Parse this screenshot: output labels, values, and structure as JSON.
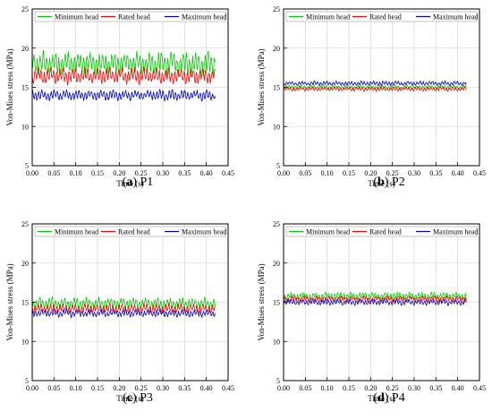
{
  "chart_data": [
    {
      "type": "line",
      "panel_letter": "a",
      "panel_name": "P1",
      "xlabel": "Time (s)",
      "ylabel": "Von-Mises stress (MPa)",
      "xlim": [
        0.0,
        0.45
      ],
      "ylim": [
        5,
        25
      ],
      "xticks": [
        "0.00",
        "0.05",
        "0.10",
        "0.15",
        "0.20",
        "0.25",
        "0.30",
        "0.35",
        "0.40",
        "0.45"
      ],
      "yticks": [
        "5",
        "10",
        "15",
        "20",
        "25"
      ],
      "grid": true,
      "legend": "top",
      "series": [
        {
          "name": "Minimum head",
          "color": "#00cc00",
          "x_start": 0.0,
          "x_end": 0.42,
          "mean": 18.0,
          "amplitude": 1.6
        },
        {
          "name": "Rated head",
          "color": "#ff0000",
          "x_start": 0.0,
          "x_end": 0.42,
          "mean": 16.5,
          "amplitude": 1.1
        },
        {
          "name": "Maximum head",
          "color": "#0000cc",
          "x_start": 0.0,
          "x_end": 0.42,
          "mean": 14.0,
          "amplitude": 0.7
        }
      ]
    },
    {
      "type": "line",
      "panel_letter": "b",
      "panel_name": "P2",
      "xlabel": "Time (s)",
      "ylabel": "Von-Mises stress (MPa)",
      "xlim": [
        0.0,
        0.45
      ],
      "ylim": [
        5,
        25
      ],
      "xticks": [
        "0.00",
        "0.05",
        "0.10",
        "0.15",
        "0.20",
        "0.25",
        "0.30",
        "0.35",
        "0.40",
        "0.45"
      ],
      "yticks": [
        "5",
        "10",
        "15",
        "20",
        "25"
      ],
      "grid": true,
      "legend": "top",
      "series": [
        {
          "name": "Minimum head",
          "color": "#00cc00",
          "x_start": 0.0,
          "x_end": 0.42,
          "mean": 15.0,
          "amplitude": 0.3
        },
        {
          "name": "Rated head",
          "color": "#ff0000",
          "x_start": 0.0,
          "x_end": 0.42,
          "mean": 14.8,
          "amplitude": 0.3
        },
        {
          "name": "Maximum head",
          "color": "#0000cc",
          "x_start": 0.0,
          "x_end": 0.42,
          "mean": 15.5,
          "amplitude": 0.3
        }
      ]
    },
    {
      "type": "line",
      "panel_letter": "c",
      "panel_name": "P3",
      "xlabel": "Time (s)",
      "ylabel": "Von-Mises stress (MPa)",
      "xlim": [
        0.0,
        0.45
      ],
      "ylim": [
        5,
        25
      ],
      "xticks": [
        "0.00",
        "0.05",
        "0.10",
        "0.15",
        "0.20",
        "0.25",
        "0.30",
        "0.35",
        "0.40",
        "0.45"
      ],
      "yticks": [
        "5",
        "10",
        "15",
        "20",
        "25"
      ],
      "grid": true,
      "legend": "top",
      "series": [
        {
          "name": "Minimum head",
          "color": "#00cc00",
          "x_start": 0.0,
          "x_end": 0.42,
          "mean": 14.8,
          "amplitude": 0.8
        },
        {
          "name": "Rated head",
          "color": "#ff0000",
          "x_start": 0.0,
          "x_end": 0.42,
          "mean": 14.2,
          "amplitude": 0.6
        },
        {
          "name": "Maximum head",
          "color": "#0000cc",
          "x_start": 0.0,
          "x_end": 0.42,
          "mean": 13.6,
          "amplitude": 0.5
        }
      ]
    },
    {
      "type": "line",
      "panel_letter": "d",
      "panel_name": "P4",
      "xlabel": "Time (s)",
      "ylabel": "Von-Mises stress (MPa)",
      "xlim": [
        0.0,
        0.45
      ],
      "ylim": [
        5,
        25
      ],
      "xticks": [
        "0.00",
        "0.05",
        "0.10",
        "0.15",
        "0.20",
        "0.25",
        "0.30",
        "0.35",
        "0.40",
        "0.45"
      ],
      "yticks": [
        "5",
        "10",
        "15",
        "20",
        "25"
      ],
      "grid": true,
      "legend": "top",
      "series": [
        {
          "name": "Minimum head",
          "color": "#00cc00",
          "x_start": 0.0,
          "x_end": 0.42,
          "mean": 15.8,
          "amplitude": 0.5
        },
        {
          "name": "Rated head",
          "color": "#ff0000",
          "x_start": 0.0,
          "x_end": 0.42,
          "mean": 15.4,
          "amplitude": 0.4
        },
        {
          "name": "Maximum head",
          "color": "#0000cc",
          "x_start": 0.0,
          "x_end": 0.42,
          "mean": 15.0,
          "amplitude": 0.4
        }
      ]
    }
  ]
}
